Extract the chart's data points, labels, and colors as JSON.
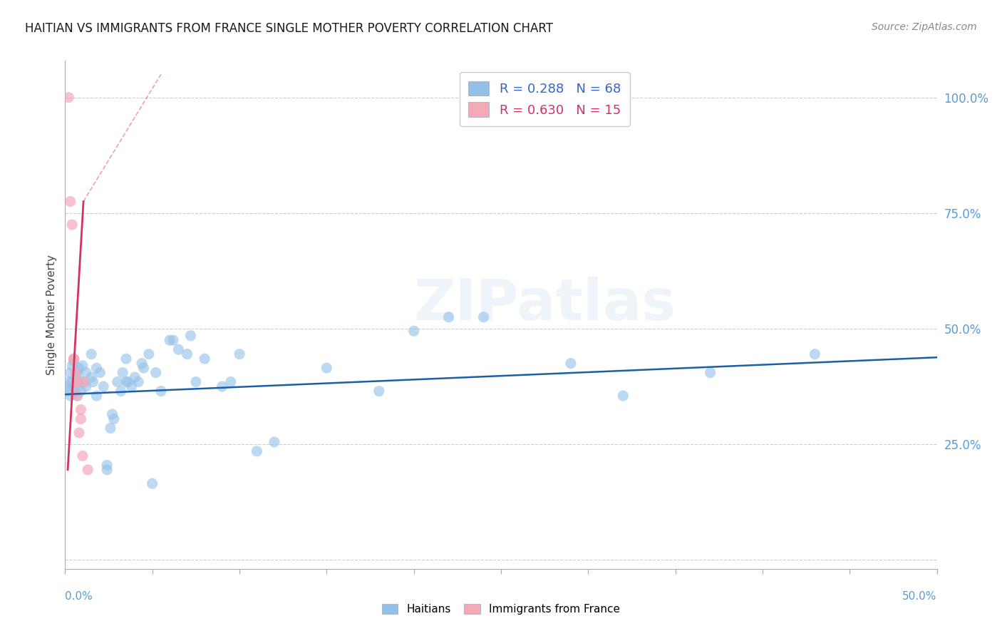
{
  "title": "HAITIAN VS IMMIGRANTS FROM FRANCE SINGLE MOTHER POVERTY CORRELATION CHART",
  "source": "Source: ZipAtlas.com",
  "ylabel": "Single Mother Poverty",
  "legend_blue": {
    "R": "0.288",
    "N": "68",
    "label": "Haitians"
  },
  "legend_pink": {
    "R": "0.630",
    "N": "15",
    "label": "Immigrants from France"
  },
  "blue_color": "#92c0e8",
  "pink_color": "#f4a8b8",
  "blue_line_color": "#1a5fa8",
  "pink_line_color": "#d43060",
  "background_color": "#ffffff",
  "grid_color": "#c8cce0",
  "xlim": [
    0.0,
    0.5
  ],
  "ylim": [
    -0.02,
    1.08
  ],
  "right_yticks": [
    0.0,
    0.25,
    0.5,
    0.75,
    1.0
  ],
  "right_yticklabels": [
    "",
    "25.0%",
    "50.0%",
    "75.0%",
    "100.0%"
  ],
  "blue_scatter": [
    [
      0.001,
      0.375
    ],
    [
      0.002,
      0.385
    ],
    [
      0.002,
      0.365
    ],
    [
      0.003,
      0.405
    ],
    [
      0.003,
      0.355
    ],
    [
      0.004,
      0.42
    ],
    [
      0.004,
      0.385
    ],
    [
      0.005,
      0.43
    ],
    [
      0.005,
      0.375
    ],
    [
      0.006,
      0.395
    ],
    [
      0.006,
      0.365
    ],
    [
      0.007,
      0.405
    ],
    [
      0.007,
      0.355
    ],
    [
      0.008,
      0.415
    ],
    [
      0.008,
      0.385
    ],
    [
      0.009,
      0.365
    ],
    [
      0.01,
      0.42
    ],
    [
      0.01,
      0.385
    ],
    [
      0.012,
      0.405
    ],
    [
      0.012,
      0.375
    ],
    [
      0.015,
      0.445
    ],
    [
      0.015,
      0.395
    ],
    [
      0.016,
      0.385
    ],
    [
      0.018,
      0.415
    ],
    [
      0.018,
      0.355
    ],
    [
      0.02,
      0.405
    ],
    [
      0.022,
      0.375
    ],
    [
      0.024,
      0.205
    ],
    [
      0.024,
      0.195
    ],
    [
      0.026,
      0.285
    ],
    [
      0.027,
      0.315
    ],
    [
      0.028,
      0.305
    ],
    [
      0.03,
      0.385
    ],
    [
      0.032,
      0.365
    ],
    [
      0.033,
      0.405
    ],
    [
      0.035,
      0.435
    ],
    [
      0.035,
      0.385
    ],
    [
      0.036,
      0.385
    ],
    [
      0.038,
      0.375
    ],
    [
      0.04,
      0.395
    ],
    [
      0.042,
      0.385
    ],
    [
      0.044,
      0.425
    ],
    [
      0.045,
      0.415
    ],
    [
      0.048,
      0.445
    ],
    [
      0.05,
      0.165
    ],
    [
      0.052,
      0.405
    ],
    [
      0.055,
      0.365
    ],
    [
      0.06,
      0.475
    ],
    [
      0.062,
      0.475
    ],
    [
      0.065,
      0.455
    ],
    [
      0.07,
      0.445
    ],
    [
      0.072,
      0.485
    ],
    [
      0.075,
      0.385
    ],
    [
      0.08,
      0.435
    ],
    [
      0.09,
      0.375
    ],
    [
      0.095,
      0.385
    ],
    [
      0.1,
      0.445
    ],
    [
      0.11,
      0.235
    ],
    [
      0.12,
      0.255
    ],
    [
      0.15,
      0.415
    ],
    [
      0.18,
      0.365
    ],
    [
      0.2,
      0.495
    ],
    [
      0.22,
      0.525
    ],
    [
      0.24,
      0.525
    ],
    [
      0.29,
      0.425
    ],
    [
      0.32,
      0.355
    ],
    [
      0.37,
      0.405
    ],
    [
      0.43,
      0.445
    ]
  ],
  "pink_scatter": [
    [
      0.002,
      1.0
    ],
    [
      0.003,
      0.775
    ],
    [
      0.004,
      0.725
    ],
    [
      0.005,
      0.435
    ],
    [
      0.005,
      0.435
    ],
    [
      0.006,
      0.405
    ],
    [
      0.006,
      0.385
    ],
    [
      0.007,
      0.385
    ],
    [
      0.007,
      0.355
    ],
    [
      0.008,
      0.275
    ],
    [
      0.009,
      0.325
    ],
    [
      0.009,
      0.305
    ],
    [
      0.01,
      0.225
    ],
    [
      0.011,
      0.385
    ],
    [
      0.013,
      0.195
    ]
  ],
  "blue_trendline": [
    0.0,
    0.358,
    0.5,
    0.438
  ],
  "pink_trendline_solid": [
    0.0015,
    0.195,
    0.0105,
    0.775
  ],
  "pink_trendline_dashed": [
    0.0105,
    0.775,
    0.055,
    1.05
  ],
  "watermark": "ZIPatlas"
}
